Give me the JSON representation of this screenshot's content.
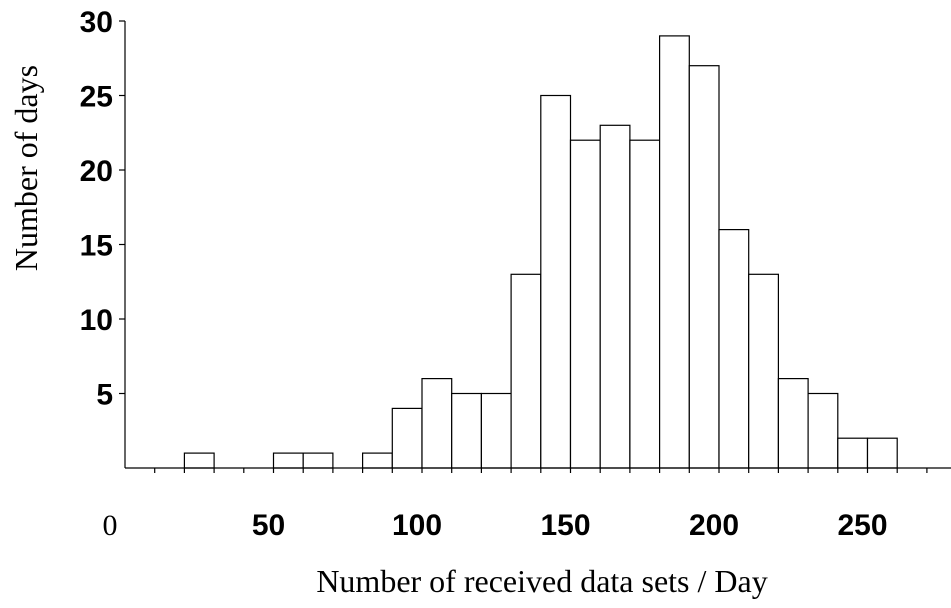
{
  "chart_data": {
    "type": "bar",
    "title": "",
    "xlabel": "Number of received data sets / Day",
    "ylabel": "Number of days",
    "bin_width": 10,
    "xlim": [
      0,
      270
    ],
    "ylim": [
      0,
      30
    ],
    "x_ticks": [
      "0",
      "50",
      "100",
      "150",
      "200",
      "250"
    ],
    "y_ticks": [
      "5",
      "10",
      "15",
      "20",
      "25",
      "30"
    ],
    "bins": [
      {
        "start": 20,
        "end": 30,
        "value": 1
      },
      {
        "start": 50,
        "end": 60,
        "value": 1
      },
      {
        "start": 60,
        "end": 70,
        "value": 1
      },
      {
        "start": 80,
        "end": 90,
        "value": 1
      },
      {
        "start": 90,
        "end": 100,
        "value": 4
      },
      {
        "start": 100,
        "end": 110,
        "value": 6
      },
      {
        "start": 110,
        "end": 120,
        "value": 5
      },
      {
        "start": 120,
        "end": 130,
        "value": 5
      },
      {
        "start": 130,
        "end": 140,
        "value": 13
      },
      {
        "start": 140,
        "end": 150,
        "value": 25
      },
      {
        "start": 150,
        "end": 160,
        "value": 22
      },
      {
        "start": 160,
        "end": 170,
        "value": 23
      },
      {
        "start": 170,
        "end": 180,
        "value": 22
      },
      {
        "start": 180,
        "end": 190,
        "value": 29
      },
      {
        "start": 190,
        "end": 200,
        "value": 27
      },
      {
        "start": 200,
        "end": 210,
        "value": 16
      },
      {
        "start": 210,
        "end": 220,
        "value": 13
      },
      {
        "start": 220,
        "end": 230,
        "value": 6
      },
      {
        "start": 230,
        "end": 240,
        "value": 5
      },
      {
        "start": 240,
        "end": 250,
        "value": 2
      },
      {
        "start": 250,
        "end": 260,
        "value": 2
      }
    ],
    "grid": false,
    "legend": "none",
    "colors": {
      "bar_fill": "#ffffff",
      "bar_stroke": "#000000",
      "axis": "#000000"
    }
  }
}
